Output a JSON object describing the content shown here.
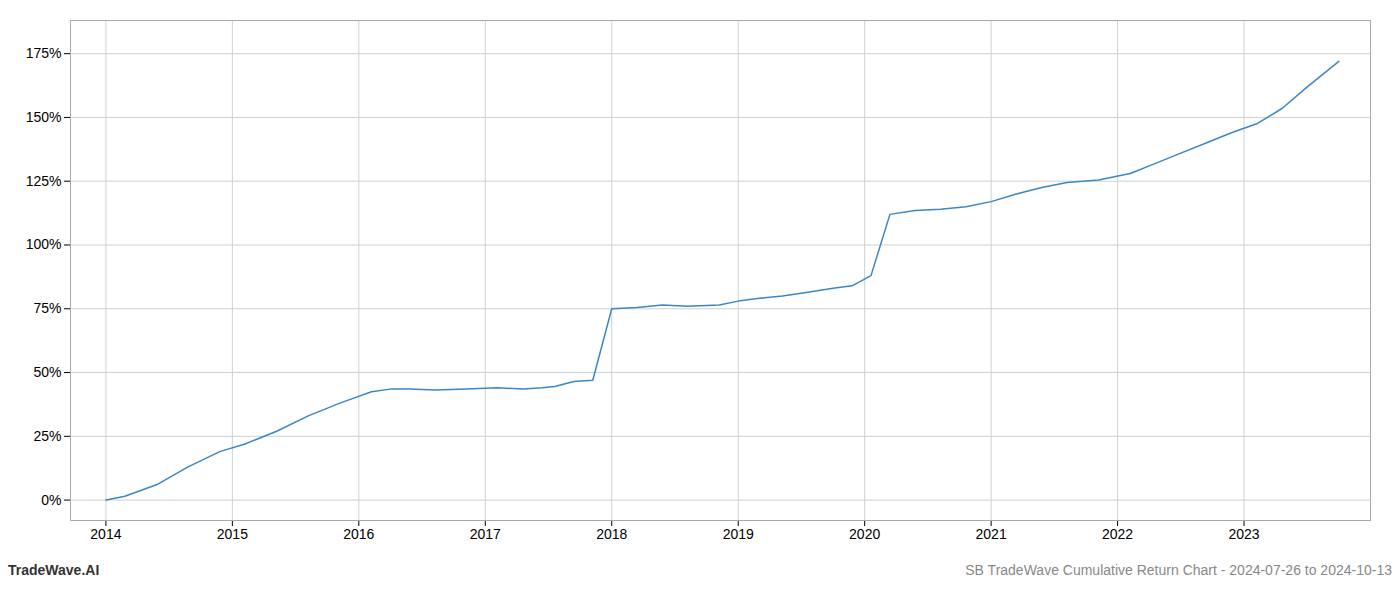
{
  "chart_data": {
    "type": "line",
    "x": [
      2014.0,
      2014.15,
      2014.4,
      2014.65,
      2014.9,
      2015.1,
      2015.35,
      2015.6,
      2015.85,
      2016.1,
      2016.25,
      2016.4,
      2016.6,
      2016.85,
      2017.1,
      2017.3,
      2017.45,
      2017.55,
      2017.7,
      2017.85,
      2018.0,
      2018.2,
      2018.4,
      2018.6,
      2018.85,
      2019.0,
      2019.15,
      2019.35,
      2019.55,
      2019.75,
      2019.9,
      2020.05,
      2020.2,
      2020.4,
      2020.6,
      2020.8,
      2021.0,
      2021.2,
      2021.4,
      2021.6,
      2021.85,
      2022.1,
      2022.3,
      2022.5,
      2022.7,
      2022.9,
      2023.1,
      2023.3,
      2023.5,
      2023.75
    ],
    "values": [
      0.0,
      1.5,
      6.0,
      13.0,
      19.0,
      22.0,
      27.0,
      33.0,
      38.0,
      42.5,
      43.5,
      43.5,
      43.2,
      43.5,
      44.0,
      43.5,
      44.0,
      44.5,
      46.5,
      47.0,
      75.0,
      75.5,
      76.5,
      76.0,
      76.5,
      78.0,
      79.0,
      80.0,
      81.5,
      83.0,
      84.0,
      88.0,
      112.0,
      113.5,
      114.0,
      115.0,
      117.0,
      120.0,
      122.5,
      124.5,
      125.5,
      128.0,
      132.0,
      136.0,
      140.0,
      144.0,
      147.5,
      153.5,
      162.0,
      172.0
    ],
    "color": "#3a87c8",
    "xlim": [
      2013.72,
      2024.0
    ],
    "xticks": [
      2014,
      2015,
      2016,
      2017,
      2018,
      2019,
      2020,
      2021,
      2022,
      2023
    ],
    "ylim": [
      -8,
      188
    ],
    "yticks": [
      {
        "value": 0,
        "label": "0%"
      },
      {
        "value": 25,
        "label": "25%"
      },
      {
        "value": 50,
        "label": "50%"
      },
      {
        "value": 75,
        "label": "75%"
      },
      {
        "value": 100,
        "label": "100%"
      },
      {
        "value": 125,
        "label": "125%"
      },
      {
        "value": 150,
        "label": "150%"
      },
      {
        "value": 175,
        "label": "175%"
      }
    ],
    "grid": true,
    "annotations": [
      "TradeWave.AI",
      "SB TradeWave Cumulative Return Chart - 2024-07-26 to 2024-10-13"
    ]
  }
}
